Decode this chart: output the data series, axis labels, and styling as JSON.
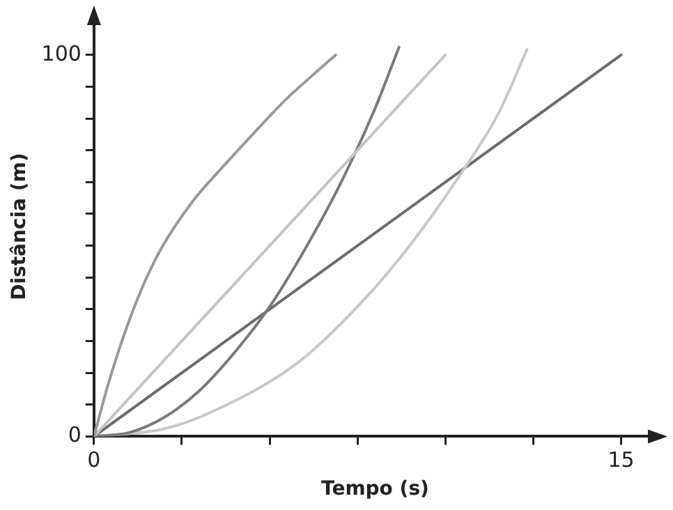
{
  "chart_data": {
    "type": "line",
    "xlabel": "Tempo (s)",
    "ylabel": "Distância (m)",
    "xlim": [
      0,
      16
    ],
    "ylim": [
      0,
      110
    ],
    "xticks": [
      0,
      {
        "value": 2.5,
        "label": null
      },
      {
        "value": 5,
        "label": null
      },
      {
        "value": 7.5,
        "label": null
      },
      {
        "value": 10,
        "label": null
      },
      {
        "value": 12.5,
        "label": null
      },
      15
    ],
    "yticks": [
      0,
      {
        "value": 8.33,
        "label": null
      },
      {
        "value": 16.67,
        "label": null
      },
      {
        "value": 25,
        "label": null
      },
      {
        "value": 33.33,
        "label": null
      },
      {
        "value": 41.67,
        "label": null
      },
      {
        "value": 50,
        "label": null
      },
      {
        "value": 58.33,
        "label": null
      },
      {
        "value": 66.67,
        "label": null
      },
      {
        "value": 75,
        "label": null
      },
      {
        "value": 83.33,
        "label": null
      },
      {
        "value": 91.67,
        "label": null
      },
      100
    ],
    "grid": false,
    "legend": false,
    "marker": "none",
    "line_style": "solid",
    "series": [
      {
        "color": "#999999",
        "x": [
          0,
          0.4,
          0.86,
          1.35,
          1.9,
          2.8,
          3.74,
          4.6,
          5.45,
          6.2,
          6.88
        ],
        "values": [
          0,
          13.5,
          26.7,
          38.5,
          49,
          61.5,
          71.4,
          80,
          88.2,
          94.5,
          100
        ]
      },
      {
        "color": "#c4c4c4",
        "x": [
          0,
          10
        ],
        "values": [
          0,
          100
        ]
      },
      {
        "color": "#7a7a7a",
        "x": [
          0,
          1,
          2,
          3,
          4,
          5,
          6,
          7,
          8,
          8.68
        ],
        "values": [
          0,
          1,
          5,
          12,
          22,
          34,
          49,
          66,
          86,
          102
        ]
      },
      {
        "color": "#c8c8c8",
        "x": [
          0,
          2,
          3.37,
          5.81,
          7.66,
          9,
          10.48,
          11.5,
          12.32
        ],
        "values": [
          0,
          2,
          6.5,
          19.4,
          35.6,
          50.2,
          69.4,
          84.5,
          101.4
        ]
      },
      {
        "color": "#6b6b6b",
        "x": [
          0,
          15
        ],
        "values": [
          0,
          100
        ]
      }
    ]
  }
}
